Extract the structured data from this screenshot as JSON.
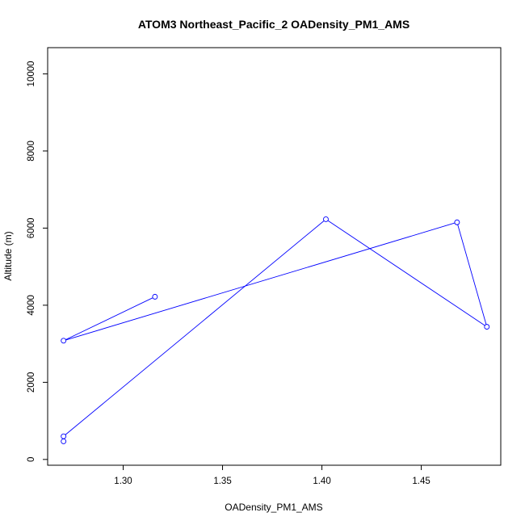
{
  "chart_data": {
    "type": "line",
    "title": "ATOM3 Northeast_Pacific_2 OADensity_PM1_AMS",
    "xlabel": "OADensity_PM1_AMS",
    "ylabel": "Altitude (m)",
    "xlim": [
      1.262,
      1.49
    ],
    "ylim": [
      -150,
      10680
    ],
    "xticks": [
      1.3,
      1.35,
      1.4,
      1.45
    ],
    "xtick_labels": [
      "1.30",
      "1.35",
      "1.40",
      "1.45"
    ],
    "yticks": [
      0,
      2000,
      4000,
      6000,
      8000,
      10000
    ],
    "ytick_labels": [
      "0",
      "2000",
      "4000",
      "6000",
      "8000",
      "10000"
    ],
    "grid": false,
    "series": [
      {
        "color": "#0000ff",
        "marker": "open-circle",
        "x": [
          1.27,
          1.27,
          1.402,
          1.483,
          1.468,
          1.27,
          1.316
        ],
        "y": [
          470,
          600,
          6230,
          3440,
          6150,
          3080,
          4220
        ]
      }
    ]
  }
}
